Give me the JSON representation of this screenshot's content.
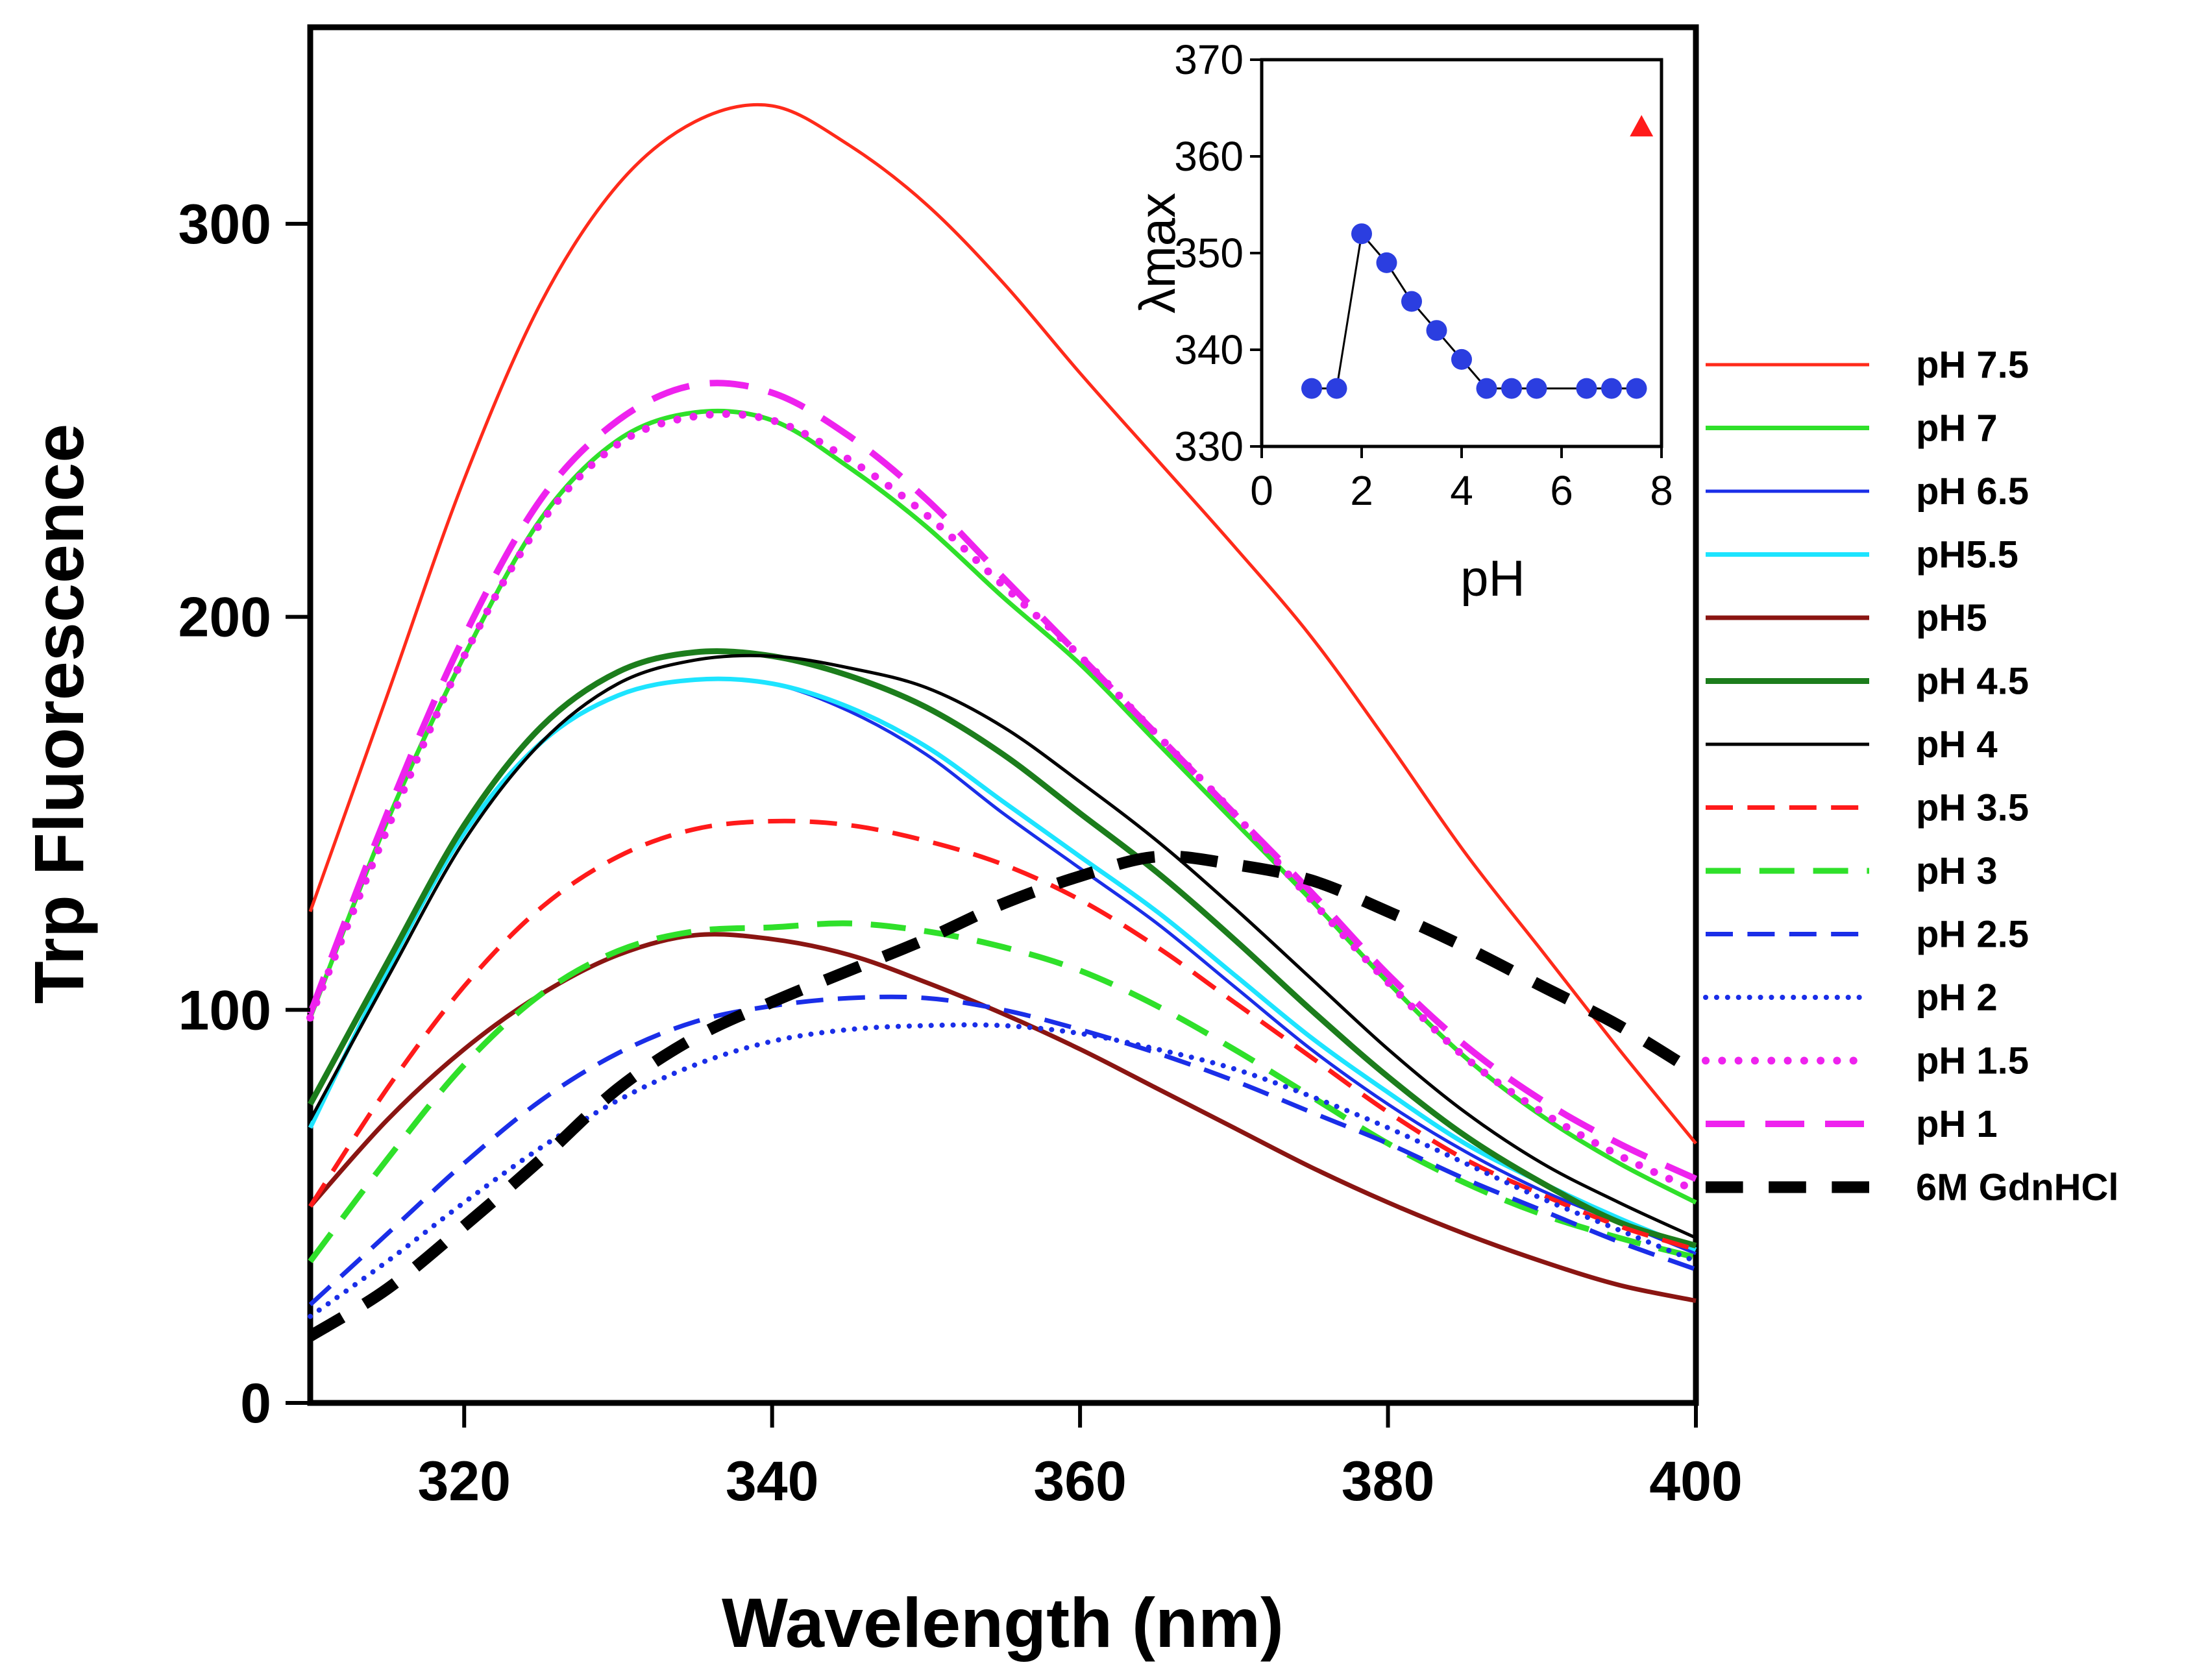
{
  "chart_data": [
    {
      "type": "line",
      "title": "",
      "xlabel": "Wavelength (nm)",
      "ylabel": "Trp Fluorescence",
      "xlim": [
        310,
        400
      ],
      "ylim": [
        0,
        350
      ],
      "xticks": [
        320,
        340,
        360,
        380,
        400
      ],
      "yticks": [
        0,
        100,
        200,
        300
      ],
      "grid": false,
      "legend_position": "right",
      "series": [
        {
          "name": "pH 7.5",
          "color": "#ff2a1a",
          "dash": "solid",
          "width": 5,
          "x": [
            310,
            315,
            320,
            325,
            330,
            335,
            340,
            345,
            350,
            355,
            360,
            365,
            370,
            375,
            380,
            385,
            390,
            395,
            400
          ],
          "y": [
            125,
            180,
            235,
            280,
            310,
            326,
            330,
            320,
            305,
            285,
            262,
            240,
            218,
            195,
            168,
            140,
            115,
            90,
            66
          ]
        },
        {
          "name": "pH 7",
          "color": "#2fe02a",
          "dash": "solid",
          "width": 7,
          "x": [
            310,
            315,
            320,
            325,
            330,
            335,
            340,
            345,
            350,
            355,
            360,
            365,
            370,
            375,
            380,
            385,
            390,
            395,
            400
          ],
          "y": [
            98,
            148,
            190,
            225,
            245,
            252,
            250,
            238,
            223,
            205,
            188,
            168,
            148,
            128,
            107,
            88,
            73,
            61,
            51
          ]
        },
        {
          "name": "pH 6.5",
          "color": "#1a2ee8",
          "dash": "solid",
          "width": 5,
          "x": [
            310,
            315,
            320,
            325,
            330,
            335,
            340,
            345,
            350,
            355,
            360,
            365,
            370,
            375,
            380,
            385,
            390,
            395,
            400
          ],
          "y": [
            70,
            110,
            145,
            168,
            180,
            184,
            183,
            176,
            165,
            150,
            136,
            122,
            106,
            90,
            76,
            64,
            54,
            46,
            38
          ]
        },
        {
          "name": "pH5.5",
          "color": "#1de4ff",
          "dash": "solid",
          "width": 7,
          "x": [
            310,
            315,
            320,
            325,
            330,
            335,
            340,
            345,
            350,
            355,
            360,
            365,
            370,
            375,
            380,
            385,
            390,
            395,
            400
          ],
          "y": [
            70,
            110,
            145,
            168,
            180,
            184,
            183,
            177,
            167,
            153,
            139,
            125,
            109,
            93,
            79,
            66,
            56,
            47,
            39
          ]
        },
        {
          "name": "pH5",
          "color": "#8a1512",
          "dash": "solid",
          "width": 7,
          "x": [
            310,
            315,
            320,
            325,
            330,
            335,
            340,
            345,
            350,
            355,
            360,
            365,
            370,
            375,
            380,
            385,
            390,
            395,
            400
          ],
          "y": [
            50,
            72,
            90,
            104,
            114,
            119,
            118,
            114,
            107,
            99,
            90,
            80,
            70,
            60,
            51,
            43,
            36,
            30,
            26
          ]
        },
        {
          "name": "pH 4.5",
          "color": "#1c7d1c",
          "dash": "solid",
          "width": 9,
          "x": [
            310,
            315,
            320,
            325,
            330,
            335,
            340,
            345,
            350,
            355,
            360,
            365,
            370,
            375,
            380,
            385,
            390,
            395,
            400
          ],
          "y": [
            76,
            112,
            147,
            172,
            186,
            191,
            190,
            185,
            177,
            165,
            150,
            135,
            118,
            100,
            83,
            68,
            56,
            46,
            40
          ]
        },
        {
          "name": "pH 4",
          "color": "#000000",
          "dash": "solid",
          "width": 5,
          "x": [
            310,
            315,
            320,
            325,
            330,
            335,
            340,
            345,
            350,
            355,
            360,
            365,
            370,
            375,
            380,
            385,
            390,
            395,
            400
          ],
          "y": [
            72,
            108,
            143,
            168,
            183,
            189,
            190,
            187,
            182,
            172,
            158,
            143,
            126,
            108,
            90,
            74,
            61,
            51,
            42
          ]
        },
        {
          "name": "pH 3.5",
          "color": "#ff1a1a",
          "dash": "long",
          "width": 7,
          "x": [
            310,
            315,
            320,
            325,
            330,
            335,
            340,
            345,
            350,
            355,
            360,
            365,
            370,
            375,
            380,
            385,
            390,
            395,
            400
          ],
          "y": [
            50,
            80,
            106,
            126,
            139,
            146,
            148,
            147,
            143,
            137,
            128,
            116,
            102,
            88,
            74,
            62,
            53,
            45,
            39
          ]
        },
        {
          "name": "pH 3",
          "color": "#2fe02a",
          "dash": "long",
          "width": 9,
          "x": [
            310,
            315,
            320,
            325,
            330,
            335,
            340,
            345,
            350,
            355,
            360,
            365,
            370,
            375,
            380,
            385,
            390,
            395,
            400
          ],
          "y": [
            36,
            62,
            86,
            104,
            115,
            120,
            121,
            122,
            120,
            116,
            110,
            101,
            90,
            78,
            66,
            56,
            48,
            42,
            37
          ]
        },
        {
          "name": "pH 2.5",
          "color": "#1a2ee8",
          "dash": "long",
          "width": 7,
          "x": [
            310,
            315,
            320,
            325,
            330,
            335,
            340,
            345,
            350,
            355,
            360,
            365,
            370,
            375,
            380,
            385,
            390,
            395,
            400
          ],
          "y": [
            25,
            43,
            61,
            77,
            89,
            97,
            101,
            103,
            103,
            100,
            95,
            89,
            82,
            74,
            66,
            57,
            49,
            41,
            34
          ]
        },
        {
          "name": "pH 2",
          "color": "#1a2ee8",
          "dash": "dot",
          "width": 8,
          "x": [
            310,
            315,
            320,
            325,
            330,
            335,
            340,
            345,
            350,
            355,
            360,
            365,
            370,
            375,
            380,
            385,
            390,
            395,
            400
          ],
          "y": [
            22,
            36,
            51,
            65,
            77,
            86,
            92,
            95,
            96,
            96,
            94,
            90,
            85,
            78,
            70,
            61,
            52,
            44,
            36
          ]
        },
        {
          "name": "pH 1.5",
          "color": "#ee22ee",
          "dash": "dot",
          "width": 12,
          "x": [
            310,
            315,
            320,
            325,
            330,
            335,
            340,
            345,
            350,
            355,
            360,
            365,
            370,
            375,
            380,
            385,
            390,
            395,
            400
          ],
          "y": [
            98,
            146,
            190,
            224,
            244,
            251,
            250,
            240,
            226,
            208,
            190,
            170,
            150,
            128,
            107,
            88,
            74,
            63,
            54
          ]
        },
        {
          "name": "pH 1",
          "color": "#ee22ee",
          "dash": "long",
          "width": 10,
          "x": [
            310,
            315,
            320,
            325,
            330,
            335,
            340,
            345,
            350,
            355,
            360,
            365,
            370,
            375,
            380,
            385,
            390,
            395,
            400
          ],
          "y": [
            99,
            150,
            195,
            230,
            250,
            259,
            257,
            246,
            230,
            210,
            190,
            170,
            150,
            130,
            109,
            91,
            77,
            66,
            57
          ]
        },
        {
          "name": "6M GdnHCl",
          "color": "#000000",
          "dash": "heavy",
          "width": 18,
          "x": [
            310,
            315,
            320,
            325,
            330,
            335,
            340,
            345,
            350,
            355,
            360,
            365,
            370,
            375,
            380,
            385,
            390,
            395,
            400
          ],
          "y": [
            17,
            29,
            45,
            62,
            80,
            93,
            102,
            110,
            118,
            127,
            134,
            139,
            137,
            133,
            125,
            116,
            106,
            96,
            84
          ]
        }
      ]
    },
    {
      "type": "scatter",
      "title": "",
      "xlabel": "pH",
      "ylabel": "λmax",
      "xlim": [
        0,
        8
      ],
      "ylim": [
        330,
        370
      ],
      "xticks": [
        0,
        2,
        4,
        6,
        8
      ],
      "yticks": [
        330,
        340,
        350,
        360,
        370
      ],
      "legend_position": "none",
      "series": [
        {
          "name": "λmax",
          "color": "#2b3ee0",
          "marker": "circle",
          "x": [
            1,
            1.5,
            2,
            2.5,
            3,
            3.5,
            4,
            4.5,
            5,
            5.5,
            6.5,
            7,
            7.5
          ],
          "y": [
            336,
            336,
            352,
            349,
            345,
            342,
            339,
            336,
            336,
            336,
            336,
            336,
            336
          ]
        },
        {
          "name": "6M GdnHCl",
          "color": "#ff1a1a",
          "marker": "triangle",
          "x": [
            7.6
          ],
          "y": [
            363
          ]
        }
      ]
    }
  ]
}
